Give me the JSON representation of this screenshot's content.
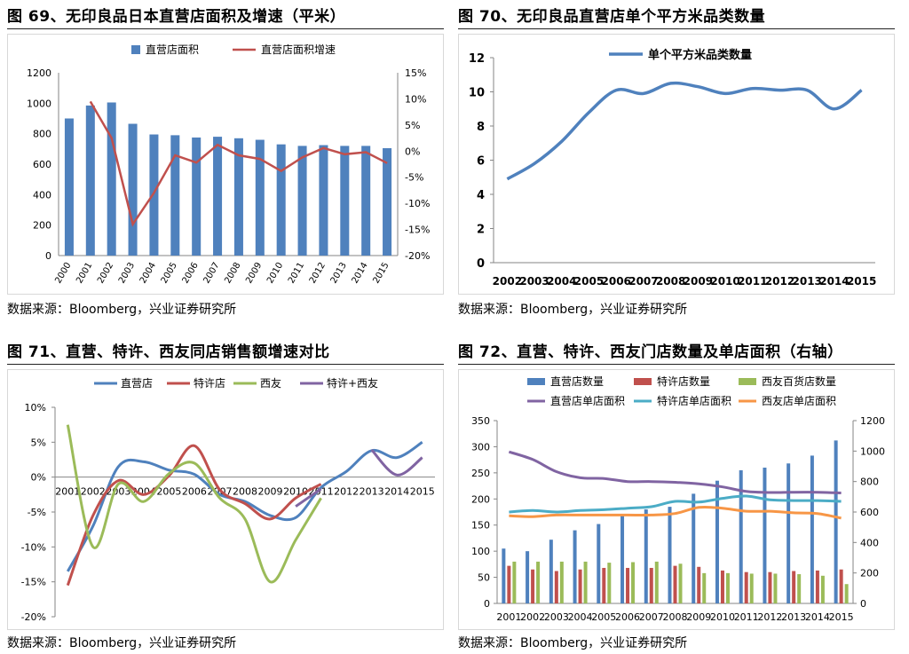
{
  "source_label": "数据来源：Bloomberg，兴业证券研究所",
  "panels": {
    "p69": {
      "title": "图 69、无印良品日本直营店面积及增速（平米）"
    },
    "p70": {
      "title": "图 70、无印良品直营店单个平方米品类数量"
    },
    "p71": {
      "title": "图 71、直营、特许、西友同店销售额增速对比"
    },
    "p72": {
      "title": "图 72、直营、特许、西友门店数量及单店面积（右轴）"
    }
  },
  "colors": {
    "blue": "#4f81bd",
    "red": "#c0504d",
    "green": "#9bbb59",
    "purple": "#8064a2",
    "cyan": "#4bacc6",
    "orange": "#f79646",
    "gray": "#868686"
  },
  "chart_data": [
    {
      "id": "p69",
      "type": "bar+line",
      "title": "图 69、无印良品日本直营店面积及增速（平米）",
      "categories": [
        "2000",
        "2001",
        "2002",
        "2003",
        "2004",
        "2005",
        "2006",
        "2007",
        "2008",
        "2009",
        "2010",
        "2011",
        "2012",
        "2013",
        "2014",
        "2015"
      ],
      "series": [
        {
          "name": "直营店面积",
          "type": "bar",
          "axis": "left",
          "values": [
            900,
            985,
            1005,
            865,
            795,
            790,
            775,
            780,
            770,
            760,
            730,
            720,
            725,
            720,
            720,
            705
          ]
        },
        {
          "name": "直营店面积增速",
          "type": "line",
          "axis": "right",
          "values": [
            null,
            9.5,
            2.5,
            -14,
            -8,
            -0.8,
            -2.2,
            1.2,
            -0.8,
            -1.5,
            -3.8,
            -1.2,
            0.6,
            -0.6,
            -0.2,
            -2.3
          ]
        }
      ],
      "ylim_left": [
        0,
        1200
      ],
      "yticks_left": [
        "0",
        "200",
        "400",
        "600",
        "800",
        "1000",
        "1200"
      ],
      "ylim_right": [
        -20,
        15
      ],
      "yticks_right": [
        "-20%",
        "-15%",
        "-10%",
        "-5%",
        "0%",
        "5%",
        "10%",
        "15%"
      ],
      "legend": "top"
    },
    {
      "id": "p70",
      "type": "line",
      "title": "图 70、无印良品直营店单个平方米品类数量",
      "categories": [
        "2002",
        "2003",
        "2004",
        "2005",
        "2006",
        "2007",
        "2008",
        "2009",
        "2010",
        "2011",
        "2012",
        "2013",
        "2014",
        "2015"
      ],
      "series": [
        {
          "name": "单个平方米品类数量",
          "values": [
            4.9,
            5.8,
            7.1,
            8.8,
            10.1,
            9.9,
            10.5,
            10.3,
            9.9,
            10.2,
            10.1,
            10.1,
            9.0,
            10.1
          ]
        }
      ],
      "ylim": [
        0,
        12
      ],
      "yticks": [
        "0",
        "2",
        "4",
        "6",
        "8",
        "10",
        "12"
      ],
      "legend": "top"
    },
    {
      "id": "p71",
      "type": "line",
      "title": "图 71、直营、特许、西友同店销售额增速对比",
      "categories": [
        "2001",
        "2002",
        "2003",
        "2004",
        "2005",
        "2006",
        "2007",
        "2008",
        "2009",
        "2010",
        "2011",
        "2012",
        "2013",
        "2014",
        "2015"
      ],
      "series": [
        {
          "name": "直营店",
          "values": [
            -13.5,
            -7,
            1.5,
            2.2,
            1,
            0.4,
            -2.5,
            -3.5,
            -5.5,
            -5.8,
            -1.5,
            0.8,
            3.8,
            2.8,
            5
          ]
        },
        {
          "name": "特许店",
          "values": [
            -15.5,
            -5.5,
            -0.5,
            -2.5,
            0.2,
            4.5,
            -1.8,
            -3.8,
            -6,
            -3,
            -1,
            null,
            null,
            null,
            null
          ]
        },
        {
          "name": "西友",
          "values": [
            7.5,
            -10,
            -1,
            -3.5,
            0.5,
            2,
            -3,
            -6,
            -15,
            -9,
            -3,
            null,
            null,
            null,
            null
          ]
        },
        {
          "name": "特许+西友",
          "values": [
            null,
            null,
            null,
            null,
            null,
            null,
            null,
            null,
            null,
            -4.2,
            -1.7,
            null,
            3.9,
            0.3,
            2.8
          ]
        }
      ],
      "ylim": [
        -20,
        10
      ],
      "yticks": [
        "-20%",
        "-15%",
        "-10%",
        "-5%",
        "0%",
        "5%",
        "10%"
      ],
      "legend": "top"
    },
    {
      "id": "p72",
      "type": "bar+line",
      "title": "图 72、直营、特许、西友门店数量及单店面积（右轴）",
      "categories": [
        "2001",
        "2002",
        "2003",
        "2004",
        "2005",
        "2006",
        "2007",
        "2008",
        "2009",
        "2010",
        "2011",
        "2012",
        "2013",
        "2014",
        "2015"
      ],
      "series": [
        {
          "name": "直营店数量",
          "type": "bar",
          "axis": "left",
          "values": [
            105,
            100,
            122,
            140,
            152,
            170,
            180,
            185,
            210,
            235,
            255,
            260,
            268,
            283,
            312
          ]
        },
        {
          "name": "特许店数量",
          "type": "bar",
          "axis": "left",
          "values": [
            72,
            65,
            62,
            65,
            68,
            68,
            68,
            72,
            70,
            63,
            60,
            60,
            62,
            63,
            65
          ]
        },
        {
          "name": "西友百货店数量",
          "type": "bar",
          "axis": "left",
          "values": [
            80,
            80,
            80,
            80,
            78,
            79,
            80,
            76,
            58,
            58,
            57,
            57,
            56,
            53,
            37
          ]
        },
        {
          "name": "直营店单店面积",
          "type": "line",
          "axis": "right",
          "values": [
            995,
            945,
            865,
            825,
            820,
            800,
            800,
            795,
            785,
            765,
            735,
            728,
            730,
            730,
            725
          ]
        },
        {
          "name": "特许店单店面积",
          "type": "line",
          "axis": "right",
          "values": [
            600,
            610,
            600,
            610,
            615,
            625,
            635,
            670,
            665,
            690,
            705,
            680,
            675,
            675,
            670
          ]
        },
        {
          "name": "西友店单店面积",
          "type": "line",
          "axis": "right",
          "values": [
            575,
            570,
            580,
            580,
            580,
            580,
            580,
            590,
            630,
            625,
            605,
            605,
            595,
            590,
            560
          ]
        }
      ],
      "ylim_left": [
        0,
        350
      ],
      "yticks_left": [
        "0",
        "50",
        "100",
        "150",
        "200",
        "250",
        "300",
        "350"
      ],
      "ylim_right": [
        0,
        1200
      ],
      "yticks_right": [
        "0",
        "200",
        "400",
        "600",
        "800",
        "1000",
        "1200"
      ],
      "legend": "top"
    }
  ]
}
